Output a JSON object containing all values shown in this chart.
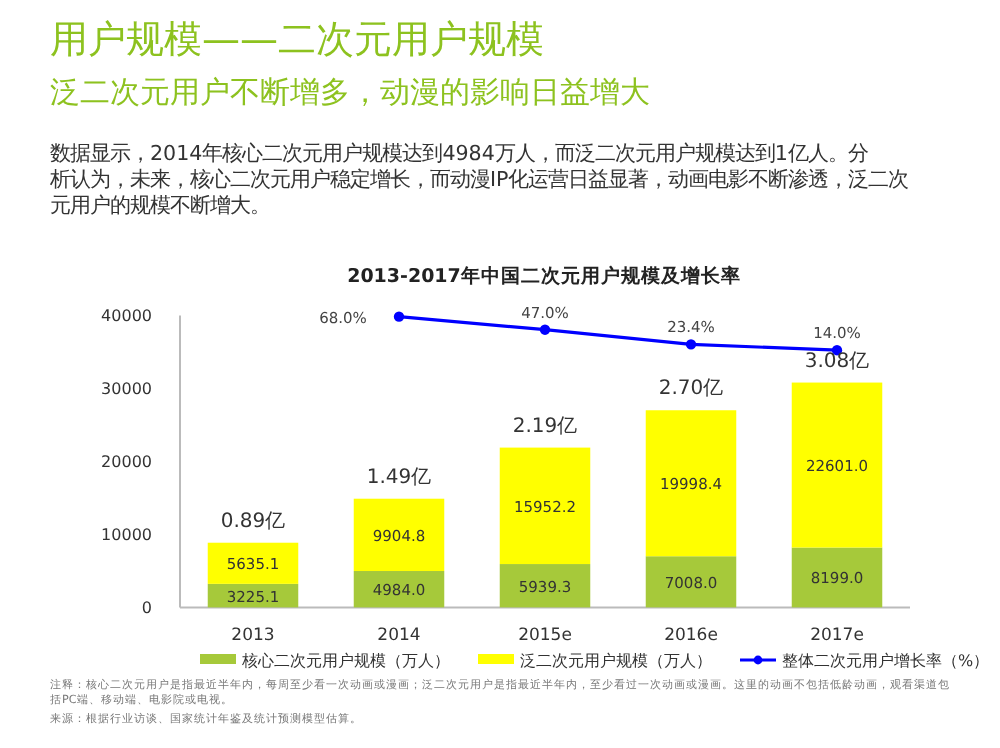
{
  "chart_data": {
    "type": "bar",
    "title": "2013-2017年中国二次元用户规模及增长率",
    "annotations": [
      "用户规模——二次元用户规模",
      "泛二次元用户不断增多，动漫的影响日益增大",
      "数据显示，2014年核心二次元用户规模达到4984万人，而泛二次元用户规模达到1亿人。分析认为，未来，核心二次元用户稳定增长，而动漫IP化运营日益显著，动画电影不断渗透，泛二次元用户的规模不断增大。",
      "注释：核心二次元用户是指最近半年内，每周至少看一次动画或漫画；泛二次元用户是指最近半年内，至少看过一次动画或漫画。这里的动画不包括低龄动画，观看渠道包括PC端、移动端、电影院或电视。",
      "来源：根据行业访谈、国家统计年鉴及统计预测模型估算。",
      {
        "text": "0.89亿",
        "x": "2013",
        "y": 8860.2
      },
      {
        "text": "1.49亿",
        "x": "2014",
        "y": 14888.8
      },
      {
        "text": "2.19亿",
        "x": "2015e",
        "y": 21891.5
      },
      {
        "text": "2.70亿",
        "x": "2016e",
        "y": 27006.4
      },
      {
        "text": "3.08亿",
        "x": "2017e",
        "y": 30800.0
      }
    ],
    "categories": [
      "2013",
      "2014",
      "2015e",
      "2016e",
      "2017e"
    ],
    "stacked": true,
    "data_labels": true,
    "legend": "bottom",
    "ylim": [
      0,
      40000
    ],
    "yticks": [
      0,
      10000,
      20000,
      30000,
      40000
    ],
    "y2lim": [
      -400,
      70
    ],
    "series": [
      {
        "name": "核心二次元用户规模（万人）",
        "color": "#a6c93a",
        "values": [
          3225.1,
          4984.0,
          5939.3,
          7008.0,
          8199.0
        ],
        "value_labels": [
          "3225.1",
          "4984.0",
          "5939.3",
          "7008.0",
          "8199.0"
        ]
      },
      {
        "name": "泛二次元用户规模（万人）",
        "color": "#ffff00",
        "values": [
          5635.1,
          9904.8,
          15952.2,
          19998.4,
          22601.0
        ],
        "value_labels": [
          "5635.1",
          "9904.8",
          "15952.2",
          "19998.4",
          "22601.0"
        ]
      },
      {
        "name": "整体二次元用户增长率（%）",
        "type": "line",
        "axis": "y2",
        "color": "#0000ff",
        "marker": "circle",
        "values": [
          null,
          68.0,
          47.0,
          23.4,
          14.0
        ],
        "value_labels": [
          null,
          "68.0%",
          "47.0%",
          "23.4%",
          "14.0%"
        ]
      }
    ]
  }
}
